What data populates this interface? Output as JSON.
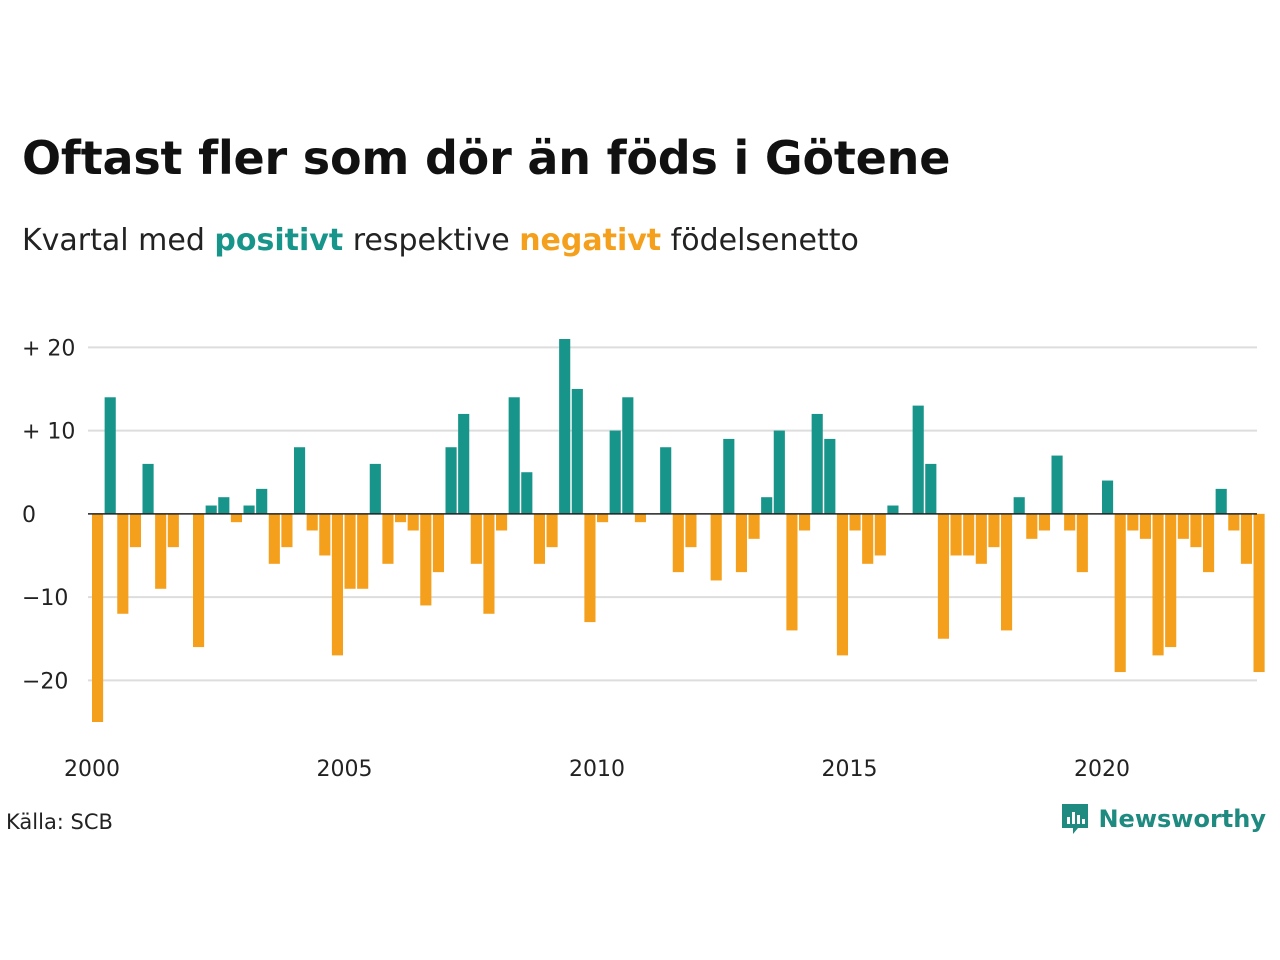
{
  "title": "Oftast fler som dör än föds i Götene",
  "subtitle": {
    "prefix": "Kvartal med ",
    "positive_word": "positivt",
    "middle": " respektive ",
    "negative_word": "negativt",
    "suffix": " födelsenetto"
  },
  "source": "Källa: SCB",
  "brand": "Newsworthy",
  "colors": {
    "positive": "#17958a",
    "negative": "#f4a01c",
    "grid": "#dddddd",
    "zero": "#222222"
  },
  "chart_data": {
    "type": "bar",
    "x_start": 2000,
    "x_step": 0.25,
    "xlim": [
      2000,
      2023
    ],
    "ylim": [
      -25,
      21
    ],
    "yticks": [
      {
        "value": 20,
        "label": "+ 20"
      },
      {
        "value": 10,
        "label": "+ 10"
      },
      {
        "value": 0,
        "label": "0"
      },
      {
        "value": -10,
        "label": "−10"
      },
      {
        "value": -20,
        "label": "−20"
      }
    ],
    "xticks": [
      {
        "value": 2000,
        "label": "2000"
      },
      {
        "value": 2005,
        "label": "2005"
      },
      {
        "value": 2010,
        "label": "2010"
      },
      {
        "value": 2015,
        "label": "2015"
      },
      {
        "value": 2020,
        "label": "2020"
      }
    ],
    "grid": true,
    "values": [
      -25,
      14,
      -12,
      -4,
      6,
      -9,
      -4,
      0,
      -16,
      1,
      2,
      -1,
      1,
      3,
      -6,
      -4,
      8,
      -2,
      -5,
      -17,
      -9,
      -9,
      6,
      -6,
      -1,
      -2,
      -11,
      -7,
      8,
      12,
      -6,
      -12,
      -2,
      14,
      5,
      -6,
      -4,
      21,
      15,
      -13,
      -1,
      10,
      14,
      -1,
      0,
      8,
      -7,
      -4,
      0,
      -8,
      9,
      -7,
      -3,
      2,
      10,
      -14,
      -2,
      12,
      9,
      -17,
      -2,
      -6,
      -5,
      1,
      0,
      13,
      6,
      -15,
      -5,
      -5,
      -6,
      -4,
      -14,
      2,
      -3,
      -2,
      7,
      -2,
      -7,
      0,
      4,
      -19,
      -2,
      -3,
      -17,
      -16,
      -3,
      -4,
      -7,
      3,
      -2,
      -6,
      -19
    ]
  }
}
